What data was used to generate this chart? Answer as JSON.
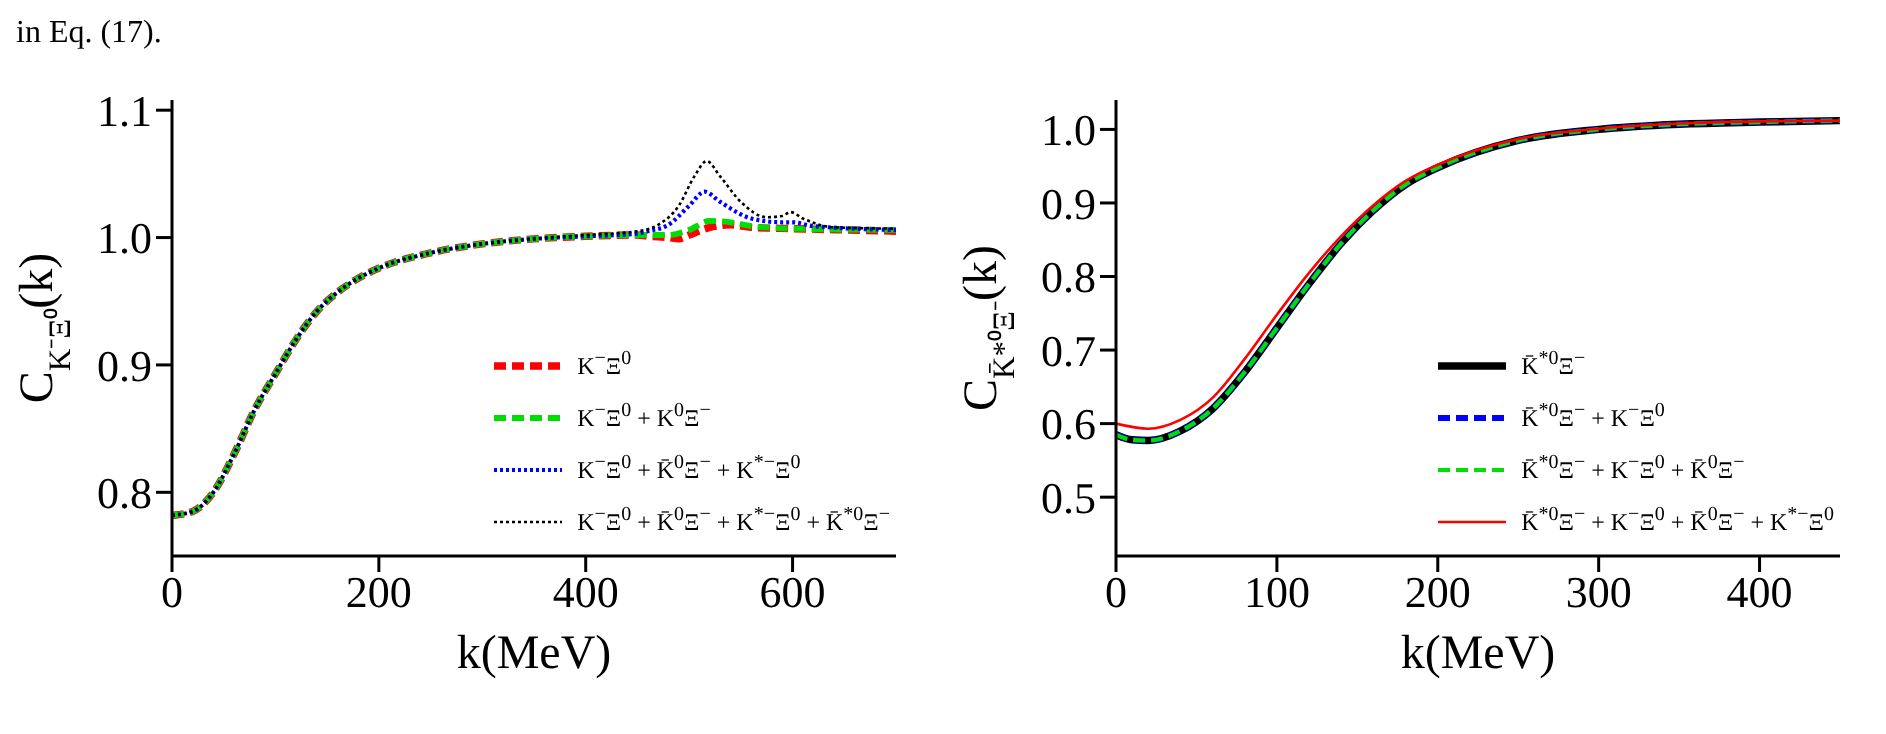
{
  "chart_data": [
    {
      "type": "line",
      "xlabel": "k(MeV)",
      "ylabel": "C$_{K⁻Ξ⁰}$(k)",
      "annotations": [
        "in Eq. (17)."
      ],
      "xlim": [
        0,
        700
      ],
      "ylim": [
        0.75,
        1.108
      ],
      "xticks": [
        0,
        200,
        400,
        600
      ],
      "yticks": [
        0.8,
        0.9,
        {
          "value": 1,
          "label": "1.0"
        },
        1.1
      ],
      "grid": false,
      "legend": "bottom right",
      "marker": "none",
      "series": [
        {
          "name": "K$^{−}$Ξ$^{0}$",
          "color": "#ff0000",
          "line_style": "dashed",
          "x": [
            0,
            20,
            40,
            60,
            80,
            100,
            120,
            140,
            160,
            180,
            200,
            250,
            300,
            350,
            400,
            450,
            460,
            480,
            490,
            500,
            520,
            540,
            560,
            600,
            650,
            700
          ],
          "values": [
            0.782,
            0.785,
            0.8,
            0.83,
            0.865,
            0.893,
            0.92,
            0.942,
            0.957,
            0.968,
            0.976,
            0.988,
            0.995,
            0.999,
            1.001,
            1.002,
            1.001,
            1.0,
            0.999,
            1.002,
            1.008,
            1.01,
            1.008,
            1.007,
            1.006,
            1.005
          ]
        },
        {
          "name": "K$^{−}$Ξ$^{0}$ + K$^{0}$Ξ$^{−}$",
          "color": "#00dd00",
          "line_style": "dashed",
          "x": [
            0,
            20,
            40,
            60,
            80,
            100,
            120,
            140,
            160,
            180,
            200,
            250,
            300,
            350,
            400,
            450,
            480,
            500,
            520,
            540,
            560,
            600,
            700
          ],
          "values": [
            0.782,
            0.785,
            0.8,
            0.83,
            0.865,
            0.893,
            0.92,
            0.942,
            0.957,
            0.968,
            0.976,
            0.988,
            0.995,
            0.999,
            1.001,
            1.002,
            1.002,
            1.006,
            1.013,
            1.012,
            1.009,
            1.007,
            1.006
          ]
        },
        {
          "name": "K$^{−}$Ξ$^{0}$ + K̄$^{0}$Ξ$^{−}$ + K$^{*−}$Ξ$^{0}$",
          "color": "#0000ff",
          "line_style": "dotted",
          "x": [
            0,
            20,
            40,
            60,
            80,
            100,
            120,
            140,
            160,
            180,
            200,
            250,
            300,
            350,
            400,
            450,
            460,
            480,
            500,
            515,
            530,
            560,
            590,
            600,
            620,
            700
          ],
          "values": [
            0.782,
            0.785,
            0.8,
            0.83,
            0.865,
            0.893,
            0.92,
            0.942,
            0.957,
            0.968,
            0.976,
            0.988,
            0.995,
            0.999,
            1.001,
            1.003,
            1.005,
            1.01,
            1.025,
            1.036,
            1.028,
            1.015,
            1.012,
            1.012,
            1.009,
            1.006
          ]
        },
        {
          "name": "K$^{−}$Ξ$^{0}$ + K̄$^{0}$Ξ$^{−}$ + K$^{*−}$Ξ$^{0}$ + K̄$^{*0}$Ξ$^{−}$",
          "color": "#000000",
          "line_style": "dotted",
          "x": [
            0,
            20,
            40,
            60,
            80,
            100,
            120,
            140,
            160,
            180,
            200,
            250,
            300,
            350,
            400,
            450,
            470,
            490,
            505,
            517,
            530,
            550,
            575,
            590,
            598,
            610,
            640,
            700
          ],
          "values": [
            0.782,
            0.785,
            0.8,
            0.83,
            0.865,
            0.893,
            0.92,
            0.942,
            0.957,
            0.968,
            0.976,
            0.988,
            0.995,
            0.999,
            1.002,
            1.005,
            1.01,
            1.025,
            1.048,
            1.06,
            1.048,
            1.028,
            1.016,
            1.017,
            1.02,
            1.015,
            1.008,
            1.007
          ]
        }
      ]
    },
    {
      "type": "line",
      "xlabel": "k(MeV)",
      "ylabel": "C$_{K̄*⁰Ξ⁻}$(k)",
      "xlim": [
        0,
        450
      ],
      "ylim": [
        0.42,
        1.04
      ],
      "xticks": [
        0,
        100,
        200,
        300,
        400
      ],
      "yticks": [
        0.5,
        0.6,
        0.7,
        0.8,
        0.9,
        {
          "value": 1,
          "label": "1.0"
        }
      ],
      "grid": false,
      "legend": "bottom right",
      "marker": "none",
      "series": [
        {
          "name": "K̄$^{*0}$Ξ$^{−}$",
          "color": "#000000",
          "line_style": "solid",
          "x": [
            0,
            10,
            20,
            40,
            60,
            80,
            100,
            120,
            140,
            160,
            180,
            200,
            250,
            300,
            350,
            400,
            450
          ],
          "values": [
            0.585,
            0.578,
            0.577,
            0.59,
            0.62,
            0.67,
            0.73,
            0.79,
            0.845,
            0.89,
            0.925,
            0.948,
            0.985,
            1.0,
            1.007,
            1.01,
            1.012
          ]
        },
        {
          "name": "K̄$^{*0}$Ξ$^{−}$ + K$^{−}$Ξ$^{0}$",
          "color": "#0000ff",
          "line_style": "dashed",
          "x": [
            0,
            10,
            20,
            40,
            60,
            80,
            100,
            120,
            140,
            160,
            180,
            200,
            250,
            300,
            350,
            400,
            450
          ],
          "values": [
            0.585,
            0.578,
            0.577,
            0.59,
            0.62,
            0.67,
            0.73,
            0.79,
            0.845,
            0.89,
            0.925,
            0.948,
            0.985,
            1.0,
            1.007,
            1.01,
            1.012
          ]
        },
        {
          "name": "K̄$^{*0}$Ξ$^{−}$ + K$^{−}$Ξ$^{0}$ + K̄$^{0}$Ξ$^{−}$",
          "color": "#00dd00",
          "line_style": "dashed",
          "x": [
            0,
            10,
            20,
            40,
            60,
            80,
            100,
            120,
            140,
            160,
            180,
            200,
            250,
            300,
            350,
            400,
            450
          ],
          "values": [
            0.585,
            0.578,
            0.577,
            0.59,
            0.62,
            0.67,
            0.73,
            0.79,
            0.845,
            0.89,
            0.925,
            0.948,
            0.985,
            1.0,
            1.007,
            1.01,
            1.012
          ]
        },
        {
          "name": "K̄$^{*0}$Ξ$^{−}$ + K$^{−}$Ξ$^{0}$ + K̄$^{0}$Ξ$^{−}$ + K$^{*−}$Ξ$^{0}$",
          "color": "#ff0000",
          "line_style": "solid",
          "x": [
            0,
            20,
            40,
            60,
            80,
            100,
            120,
            140,
            160,
            180,
            200,
            250,
            300,
            350,
            400,
            450
          ],
          "values": [
            0.6,
            0.593,
            0.605,
            0.635,
            0.688,
            0.748,
            0.805,
            0.855,
            0.897,
            0.93,
            0.952,
            0.987,
            1.001,
            1.008,
            1.011,
            1.012
          ]
        }
      ]
    }
  ]
}
